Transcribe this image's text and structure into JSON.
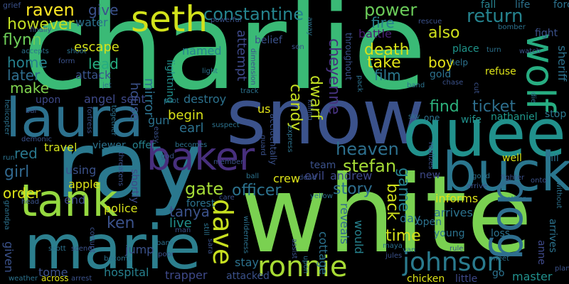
{
  "words": {
    "charlie": "charlie",
    "snow": "snow",
    "white": "white",
    "ray": "ray",
    "queen": "queen",
    "laura": "laura",
    "marie": "marie",
    "buck": "buck",
    "baker": "baker",
    "tank": "tank",
    "dog": "dog",
    "seth": "seth",
    "wolf": "wolf",
    "ronnie": "ronnie",
    "johnson": "johnson",
    "dave": "dave",
    "constantine": "constantine",
    "raven": "raven",
    "heaven": "heaven",
    "flynn": "flynn",
    "however": "however",
    "power": "power",
    "return": "return",
    "find": "find",
    "ticket": "ticket",
    "gate": "gate",
    "officer": "officer",
    "stefan": "stefan",
    "story": "story",
    "back": "back",
    "game": "game",
    "sheriff": "sheriff",
    "kill": "kill",
    "escape": "escape",
    "lead": "lead",
    "home": "home",
    "later": "later",
    "make": "make",
    "death": "death",
    "take": "take",
    "boy": "boy",
    "film": "film",
    "candy": "candy",
    "dwarf": "dwarf",
    "cheyenne": "cheyenne",
    "also": "also",
    "fire": "fire",
    "battle": "battle",
    "belief": "belief",
    "give": "give",
    "water": "water",
    "grief": "grief",
    "girl": "girl",
    "red": "red",
    "order": "order",
    "apple": "apple",
    "tanya": "tanya",
    "forest": "forest",
    "police": "police",
    "live": "live",
    "ken": "ken",
    "house": "house",
    "mirror": "mirror",
    "begin": "begin",
    "earl": "earl",
    "destroy": "destroy",
    "attempt": "attempt",
    "named": "named",
    "attack": "attack",
    "angel": "angel",
    "sent": "sent",
    "gun": "gun",
    "offer": "offer",
    "travel": "travel",
    "using": "using",
    "end": "end",
    "given": "given",
    "tome": "tome",
    "hospital": "hospital",
    "jump": "jump",
    "trapper": "trapper",
    "stay": "stay",
    "crew": "crew",
    "evil": "evil",
    "andrew": "andrew",
    "us": "us",
    "team": "team",
    "inform": "informs",
    "arrives": "arrives",
    "loss": "loss",
    "young": "young",
    "open": "open",
    "day": "day",
    "time": "time",
    "reveals": "reveals",
    "would": "would",
    "cottage": "cottage",
    "go": "go",
    "master": "master",
    "refuse": "refuse",
    "gold": "gold",
    "place": "place",
    "fall": "fall",
    "life": "life",
    "force": "force",
    "fight": "fight",
    "help": "help",
    "nathaniel": "nathaniel",
    "wife": "wife",
    "stop": "stop",
    "well": "well",
    "new": "new",
    "chicken": "chicken",
    "little": "little",
    "anne": "anne",
    "shortly": "shortly",
    "lightning": "lightning",
    "upon": "upon",
    "throughout": "throughout",
    "accidentally": "accidentally",
    "attacked": "attacked",
    "across": "across",
    "weather": "weather",
    "arrest": "arrest",
    "become": "become",
    "poor": "poor",
    "corrupt": "corrupt",
    "scott": "scott",
    "scene": "scene",
    "grandpa": "grandpa",
    "demonic": "demonic",
    "run": "run",
    "helicopter": "helicopter",
    "accepts": "accepts",
    "finally": "finally",
    "fortress": "fortress",
    "together": "together",
    "dimension": "dimension",
    "powerful": "powerful",
    "light": "light",
    "jet": "jet",
    "pilot": "pilot",
    "easy": "easy",
    "suspect": "suspect",
    "member": "member",
    "becomes": "becomes",
    "god": "god",
    "care": "care",
    "ball": "ball",
    "guard": "guard",
    "dead": "dead",
    "yellow": "yellow",
    "killing": "killing",
    "express": "express",
    "sky": "sky",
    "one": "one",
    "watch": "watch",
    "turn": "turn",
    "bomber": "bomber",
    "rescue": "rescue",
    "chase": "chase",
    "band": "band",
    "die": "die",
    "cut": "cut",
    "pack": "pack",
    "son": "son",
    "away": "away",
    "track": "track",
    "assist": "assist",
    "maya": "maya",
    "jules": "jules",
    "van": "van",
    "rule": "rule",
    "meet": "meet",
    "plan": "plan",
    "fighter": "fighter",
    "another": "another",
    "onto": "onto",
    "without": "without",
    "realizes": "realizes",
    "good": "good",
    "arrive": "arrive",
    "wilderness": "wilderness",
    "still": "still",
    "man": "man",
    "shoot": "shoot",
    "form": "form",
    "bar": "bar",
    "viewer": "viewer",
    "threatens": "threatens",
    "lead2": "head",
    "sara": "sara",
    "bank": "bank"
  }
}
